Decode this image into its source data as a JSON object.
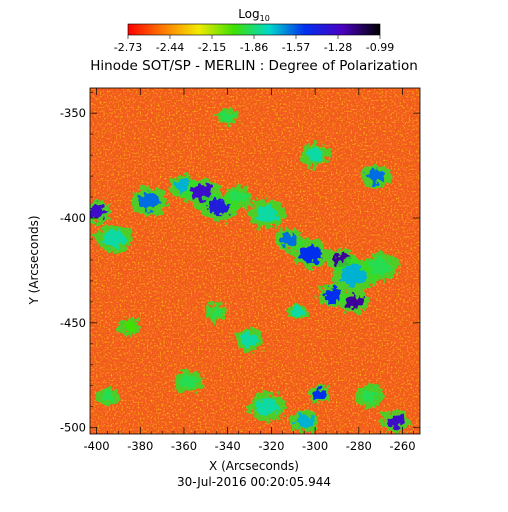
{
  "chart_data": {
    "type": "heatmap",
    "title": "Hinode SOT/SP - MERLIN : Degree of Polarization",
    "subtitle": "30-Jul-2016 00:20:05.944",
    "xlabel": "X (Arcseconds)",
    "ylabel": "Y (Arcseconds)",
    "xlim": [
      -403,
      -252
    ],
    "ylim": [
      -503,
      -338
    ],
    "x_ticks": [
      -400,
      -380,
      -360,
      -340,
      -320,
      -300,
      -280,
      -260
    ],
    "y_ticks": [
      -350,
      -400,
      -450,
      -500
    ],
    "x_ticks_labels": [
      "-400",
      "-380",
      "-360",
      "-340",
      "-320",
      "-300",
      "-280",
      "-260"
    ],
    "y_ticks_labels": [
      "-350",
      "-400",
      "-450",
      "-500"
    ],
    "colorbar": {
      "label_base": "Log",
      "label_sub": "10",
      "range": [
        -2.73,
        -0.99
      ],
      "ticks": [
        "-2.73",
        "-2.44",
        "-2.15",
        "-1.86",
        "-1.57",
        "-1.28",
        "-0.99"
      ],
      "colormap": "rainbow"
    },
    "field": {
      "background_level": -2.65,
      "features": [
        {
          "x": -400,
          "y": -397,
          "radius": 4,
          "level": -1.3
        },
        {
          "x": -392,
          "y": -410,
          "radius": 5,
          "level": -1.8
        },
        {
          "x": -376,
          "y": -392,
          "radius": 5,
          "level": -1.6
        },
        {
          "x": -360,
          "y": -385,
          "radius": 4,
          "level": -1.7
        },
        {
          "x": -352,
          "y": -388,
          "radius": 5,
          "level": -1.3
        },
        {
          "x": -344,
          "y": -395,
          "radius": 5,
          "level": -1.4
        },
        {
          "x": -335,
          "y": -390,
          "radius": 4,
          "level": -1.9
        },
        {
          "x": -322,
          "y": -398,
          "radius": 5,
          "level": -1.8
        },
        {
          "x": -312,
          "y": -410,
          "radius": 4,
          "level": -1.6
        },
        {
          "x": -302,
          "y": -417,
          "radius": 5,
          "level": -1.5
        },
        {
          "x": -288,
          "y": -420,
          "radius": 4,
          "level": -1.2
        },
        {
          "x": -282,
          "y": -427,
          "radius": 6,
          "level": -1.7
        },
        {
          "x": -270,
          "y": -423,
          "radius": 5,
          "level": -1.9
        },
        {
          "x": -282,
          "y": -440,
          "radius": 4,
          "level": -1.2
        },
        {
          "x": -292,
          "y": -437,
          "radius": 4,
          "level": -1.5
        },
        {
          "x": -308,
          "y": -445,
          "radius": 3,
          "level": -1.8
        },
        {
          "x": -345,
          "y": -445,
          "radius": 3,
          "level": -1.9
        },
        {
          "x": -330,
          "y": -458,
          "radius": 4,
          "level": -1.8
        },
        {
          "x": -358,
          "y": -478,
          "radius": 4,
          "level": -1.9
        },
        {
          "x": -322,
          "y": -490,
          "radius": 5,
          "level": -1.8
        },
        {
          "x": -305,
          "y": -497,
          "radius": 4,
          "level": -1.7
        },
        {
          "x": -298,
          "y": -484,
          "radius": 3,
          "level": -1.5
        },
        {
          "x": -263,
          "y": -497,
          "radius": 4,
          "level": -1.3
        },
        {
          "x": -275,
          "y": -485,
          "radius": 4,
          "level": -1.9
        },
        {
          "x": -395,
          "y": -485,
          "radius": 3,
          "level": -1.9
        },
        {
          "x": -340,
          "y": -352,
          "radius": 3,
          "level": -1.9
        },
        {
          "x": -300,
          "y": -370,
          "radius": 4,
          "level": -1.8
        },
        {
          "x": -272,
          "y": -380,
          "radius": 4,
          "level": -1.6
        },
        {
          "x": -385,
          "y": -452,
          "radius": 3,
          "level": -2.0
        }
      ]
    }
  }
}
